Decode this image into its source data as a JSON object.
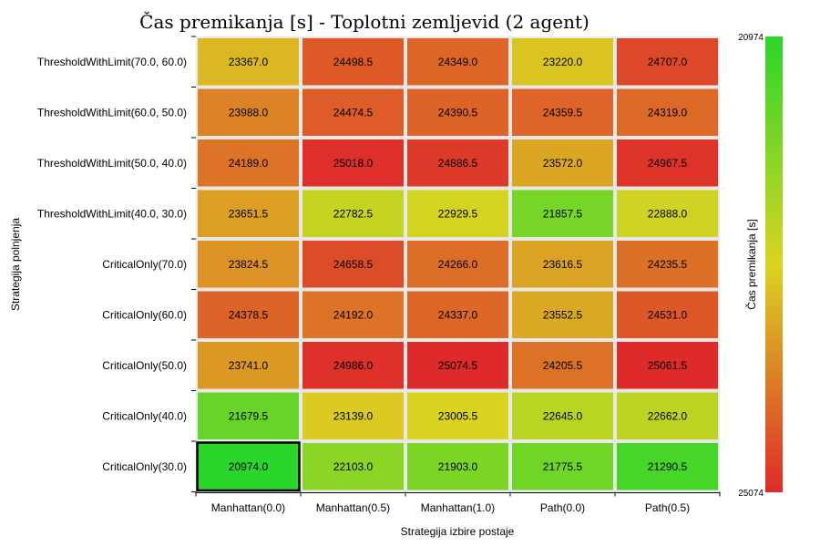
{
  "chart_data": {
    "type": "heatmap",
    "title": "Čas premikanja [s] - Toplotni zemljevid (2 agent)",
    "xlabel": "Strategija izbire postaje",
    "ylabel": "Strategija polnjenja",
    "colorbar_label": "Čas premikanja [s]",
    "colorbar_ticks": [
      "20974",
      "25074"
    ],
    "vmin": 20974,
    "vmax": 25074,
    "colormap": [
      "#2ad62a",
      "#dad420",
      "#de2a2a"
    ],
    "x_categories": [
      "Manhattan(0.0)",
      "Manhattan(0.5)",
      "Manhattan(1.0)",
      "Path(0.0)",
      "Path(0.5)"
    ],
    "y_categories": [
      "ThresholdWithLimit(70.0, 60.0)",
      "ThresholdWithLimit(60.0, 50.0)",
      "ThresholdWithLimit(50.0, 40.0)",
      "ThresholdWithLimit(40.0, 30.0)",
      "CriticalOnly(70.0)",
      "CriticalOnly(60.0)",
      "CriticalOnly(50.0)",
      "CriticalOnly(40.0)",
      "CriticalOnly(30.0)"
    ],
    "values": [
      [
        23367.0,
        24498.5,
        24349.0,
        23220.0,
        24707.0
      ],
      [
        23988.0,
        24474.5,
        24390.5,
        24359.5,
        24319.0
      ],
      [
        24189.0,
        25018.0,
        24886.5,
        23572.0,
        24967.5
      ],
      [
        23651.5,
        22782.5,
        22929.5,
        21857.5,
        22888.0
      ],
      [
        23824.5,
        24658.5,
        24266.0,
        23616.5,
        24235.5
      ],
      [
        24378.5,
        24192.0,
        24337.0,
        23552.5,
        24531.0
      ],
      [
        23741.0,
        24986.0,
        25074.5,
        24205.5,
        25061.5
      ],
      [
        21679.5,
        23139.0,
        23005.5,
        22645.0,
        22662.0
      ],
      [
        20974.0,
        22103.0,
        21903.0,
        21775.5,
        21290.5
      ]
    ],
    "highlight_cell": [
      8,
      0
    ]
  }
}
